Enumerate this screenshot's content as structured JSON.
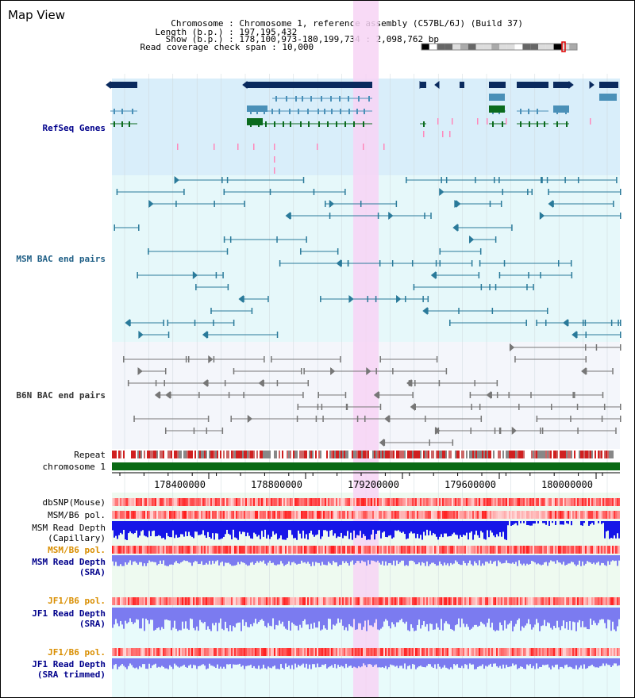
{
  "header": {
    "title": "Map View",
    "info": [
      {
        "label": "Chromosome",
        "value": "Chromosome 1, reference assembly (C57BL/6J) (Build 37)"
      },
      {
        "label": "Length (b.p.)",
        "value": "197,195,432"
      },
      {
        "label": "Show (b.p.)",
        "value": "178,100,973-180,199,734 : 2,098,762 bp"
      },
      {
        "label": "Read coverage check span",
        "value": "10,000"
      }
    ]
  },
  "tracks": {
    "refseq": "RefSeq Genes",
    "msm_bac": "MSM BAC end pairs",
    "b6n_bac": "B6N BAC end pairs",
    "repeat": "Repeat",
    "chromosome": "chromosome 1",
    "dbsnp": "dbSNP(Mouse)",
    "msm_b6_pol": "MSM/B6 pol.",
    "msm_depth_cap_1": "MSM Read Depth",
    "msm_depth_cap_2": "(Capillary)",
    "msm_b6_pol_sra": "MSM/B6 pol.",
    "msm_depth_sra_1": "MSM Read Depth",
    "msm_depth_sra_2": "(SRA)",
    "jf1_pol_1": "JF1/B6 pol.",
    "jf1_depth_1a": "JF1 Read Depth",
    "jf1_depth_1b": "(SRA)",
    "jf1_pol_2": "JF1/B6 pol.",
    "jf1_depth_2a": "JF1 Read Depth",
    "jf1_depth_2b": "(SRA trimmed)"
  },
  "ruler": {
    "ticks": [
      "178400000",
      "178800000",
      "179200000",
      "179600000",
      "180000000"
    ]
  },
  "colors": {
    "refseq_bg": "#d9eefa",
    "msm_bg": "#e6f8fa",
    "b6n_bg": "#f4f6fb",
    "depth_bg": "#eefaf0",
    "jf1_bg": "#e8fbfb",
    "highlight": "#f7d4f4",
    "gene_dark": "#0a2a5e",
    "gene_mid": "#4a90b8",
    "gene_green": "#0b6b1e",
    "bac_teal": "#2a7a9a",
    "bac_gray": "#777777",
    "chromosome": "#0a6a14",
    "depth_dark": "#1616e8",
    "depth_light": "#7b7bf0"
  }
}
